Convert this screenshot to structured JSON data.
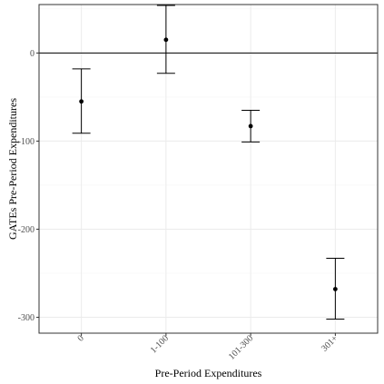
{
  "chart_data": {
    "type": "scatter",
    "title": "",
    "xlabel": "Pre-Period Expenditures",
    "ylabel": "GATEs Pre-Period Expenditures",
    "categories": [
      "0",
      "1-100",
      "101-300",
      "301+"
    ],
    "y_ticks": [
      0,
      -100,
      -200,
      -300
    ],
    "ylim": [
      -318,
      55
    ],
    "reference_line": 0,
    "grid": true,
    "legend": "none",
    "series": [
      {
        "values": [
          -55,
          15,
          -83,
          -268
        ],
        "lower": [
          -91,
          -23,
          -101,
          -302
        ],
        "upper": [
          -18,
          54,
          -65,
          -233
        ]
      }
    ],
    "colors": {
      "points": "#000000",
      "grid_major": "#ebebeb",
      "grid_minor": "#f5f5f5",
      "panel_border": "#333333"
    }
  }
}
